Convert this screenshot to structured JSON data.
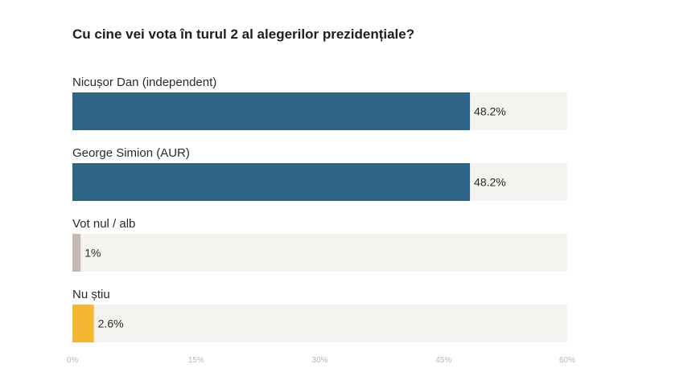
{
  "chart_data": {
    "type": "bar",
    "orientation": "horizontal",
    "title": "Cu cine vei vota în turul 2 al alegerilor prezidențiale?",
    "categories": [
      "Nicușor Dan (independent)",
      "George Simion (AUR)",
      "Vot nul / alb",
      "Nu știu"
    ],
    "values": [
      48.2,
      48.2,
      1,
      2.6
    ],
    "value_labels": [
      "48.2%",
      "48.2%",
      "1%",
      "2.6%"
    ],
    "colors": [
      "#2e6586",
      "#2e6586",
      "#c4b8b2",
      "#f5b731"
    ],
    "track_color": "#f4f3f0",
    "xlim": [
      0,
      60
    ],
    "ticks": [
      0,
      15,
      30,
      45,
      60
    ],
    "tick_labels": [
      "0%",
      "15%",
      "30%",
      "45%",
      "60%"
    ],
    "grid": false,
    "legend": "none"
  }
}
